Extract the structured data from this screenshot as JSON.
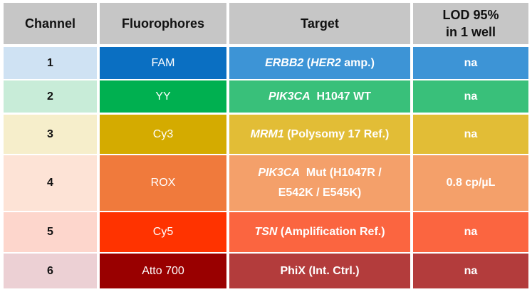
{
  "header": {
    "channel": "Channel",
    "fluorophores": "Fluorophores",
    "target": "Target",
    "lod_line1": "LOD 95%",
    "lod_line2": "in 1 well"
  },
  "rows": [
    {
      "channel": "1",
      "fluorophore": "FAM",
      "target_parts": [
        {
          "text": "ERBB2",
          "italic": true
        },
        {
          "text": " (",
          "italic": false
        },
        {
          "text": "HER2",
          "italic": true
        },
        {
          "text": " amp.)",
          "italic": false
        }
      ],
      "lod": "na",
      "colors": {
        "channel": "#cfe2f3",
        "fluorophore": "#0a6fc2",
        "target": "#3d94d6",
        "lod": "#3d94d6"
      }
    },
    {
      "channel": "2",
      "fluorophore": "YY",
      "target_parts": [
        {
          "text": "PIK3CA",
          "italic": true
        },
        {
          "text": "  H1047 WT",
          "italic": false
        }
      ],
      "lod": "na",
      "colors": {
        "channel": "#c8ecd8",
        "fluorophore": "#00b050",
        "target": "#39c07a",
        "lod": "#39c07a"
      }
    },
    {
      "channel": "3",
      "fluorophore": "Cy3",
      "target_parts": [
        {
          "text": "MRM1",
          "italic": true
        },
        {
          "text": " (Polysomy 17 Ref.)",
          "italic": false
        }
      ],
      "lod": "na",
      "colors": {
        "channel": "#f6eecb",
        "fluorophore": "#d4ab00",
        "target": "#e2bd36",
        "lod": "#e2bd36"
      }
    },
    {
      "channel": "4",
      "fluorophore": "ROX",
      "target_parts": [
        {
          "text": "PIK3CA",
          "italic": true
        },
        {
          "text": "  Mut (H1047R /",
          "italic": false
        },
        {
          "text": "\n",
          "italic": false
        },
        {
          "text": "E542K / E545K)",
          "italic": false
        }
      ],
      "lod": "0.8 cp/µL",
      "colors": {
        "channel": "#fde3d6",
        "fluorophore": "#f07a3c",
        "target": "#f4a06a",
        "lod": "#f4a06a"
      }
    },
    {
      "channel": "5",
      "fluorophore": "Cy5",
      "target_parts": [
        {
          "text": "TSN",
          "italic": true
        },
        {
          "text": " (Amplification Ref.)",
          "italic": false
        }
      ],
      "lod": "na",
      "colors": {
        "channel": "#fdd6cc",
        "fluorophore": "#ff3300",
        "target": "#fb6540",
        "lod": "#fb6540"
      }
    },
    {
      "channel": "6",
      "fluorophore": "Atto 700",
      "target_parts": [
        {
          "text": "PhiX (Int. Ctrl.)",
          "italic": false
        }
      ],
      "lod": "na",
      "colors": {
        "channel": "#ecd0d4",
        "fluorophore": "#990000",
        "target": "#b33c3c",
        "lod": "#b33c3c"
      }
    }
  ]
}
